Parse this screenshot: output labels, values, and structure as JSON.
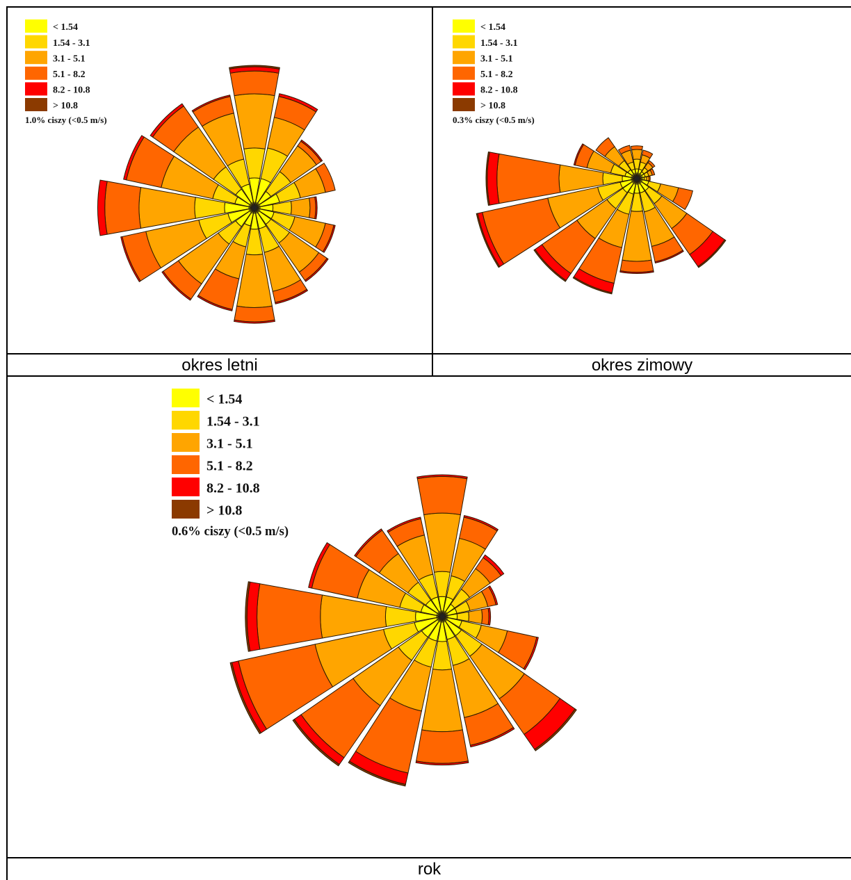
{
  "colors": [
    "#ffff00",
    "#ffd700",
    "#ffa500",
    "#ff6600",
    "#ff0000",
    "#8b3a00"
  ],
  "legend_labels": [
    "< 1.54",
    "1.54 - 3.1",
    "3.1 - 5.1",
    "5.1 - 8.2",
    "8.2 - 10.8",
    "> 10.8"
  ],
  "captions": {
    "summer": "okres letni",
    "winter": "okres zimowy",
    "year": "rok"
  },
  "calm": {
    "summer": "1.0% ciszy (<0.5 m/s)",
    "winter": "0.3% ciszy (<0.5 m/s)",
    "year": "0.6% ciszy (<0.5 m/s)"
  },
  "chart_data": [
    {
      "type": "wind-rose",
      "title": "okres letni",
      "directions_deg": [
        0,
        22.5,
        45,
        67.5,
        90,
        112.5,
        135,
        157.5,
        180,
        202.5,
        225,
        247.5,
        270,
        292.5,
        315,
        337.5
      ],
      "speed_bins": [
        "< 1.54",
        "1.54 - 3.1",
        "3.1 - 5.1",
        "5.1 - 8.2",
        "8.2 - 10.8",
        "> 10.8"
      ],
      "cumulative_radius_relative": [
        [
          0.21,
          0.42,
          0.8,
          0.96,
          0.99,
          1.0
        ],
        [
          0.21,
          0.43,
          0.65,
          0.8,
          0.82,
          0.82
        ],
        [
          0.14,
          0.31,
          0.53,
          0.57,
          0.58,
          0.58
        ],
        [
          0.18,
          0.33,
          0.51,
          0.58,
          0.58,
          0.58
        ],
        [
          0.13,
          0.26,
          0.39,
          0.43,
          0.44,
          0.44
        ],
        [
          0.14,
          0.29,
          0.51,
          0.57,
          0.58,
          0.58
        ],
        [
          0.14,
          0.3,
          0.55,
          0.62,
          0.63,
          0.63
        ],
        [
          0.15,
          0.32,
          0.6,
          0.68,
          0.69,
          0.69
        ],
        [
          0.15,
          0.33,
          0.7,
          0.8,
          0.81,
          0.81
        ],
        [
          0.13,
          0.28,
          0.51,
          0.73,
          0.74,
          0.74
        ],
        [
          0.16,
          0.31,
          0.65,
          0.78,
          0.79,
          0.79
        ],
        [
          0.19,
          0.4,
          0.78,
          0.95,
          0.96,
          0.96
        ],
        [
          0.21,
          0.42,
          0.81,
          1.05,
          1.1,
          1.1
        ],
        [
          0.14,
          0.3,
          0.67,
          0.92,
          0.94,
          0.94
        ],
        [
          0.16,
          0.35,
          0.69,
          0.87,
          0.89,
          0.89
        ],
        [
          0.17,
          0.35,
          0.68,
          0.8,
          0.81,
          0.81
        ]
      ]
    },
    {
      "type": "wind-rose",
      "title": "okres zimowy",
      "directions_deg": [
        0,
        22.5,
        45,
        67.5,
        90,
        112.5,
        135,
        157.5,
        180,
        202.5,
        225,
        247.5,
        270,
        292.5,
        315,
        337.5
      ],
      "speed_bins": [
        "< 1.54",
        "1.54 - 3.1",
        "3.1 - 5.1",
        "5.1 - 8.2",
        "8.2 - 10.8",
        "> 10.8"
      ],
      "cumulative_radius_relative": [
        [
          0.08,
          0.16,
          0.24,
          0.27,
          0.27,
          0.27
        ],
        [
          0.08,
          0.14,
          0.2,
          0.24,
          0.24,
          0.24
        ],
        [
          0.07,
          0.11,
          0.16,
          0.18,
          0.18,
          0.18
        ],
        [
          0.07,
          0.1,
          0.13,
          0.15,
          0.15,
          0.15
        ],
        [
          0.06,
          0.08,
          0.1,
          0.11,
          0.11,
          0.11
        ],
        [
          0.1,
          0.2,
          0.35,
          0.47,
          0.47,
          0.47
        ],
        [
          0.12,
          0.25,
          0.5,
          0.76,
          0.88,
          0.89
        ],
        [
          0.12,
          0.28,
          0.57,
          0.7,
          0.71,
          0.71
        ],
        [
          0.12,
          0.27,
          0.68,
          0.77,
          0.78,
          0.78
        ],
        [
          0.13,
          0.3,
          0.58,
          0.88,
          0.96,
          0.97
        ],
        [
          0.14,
          0.3,
          0.6,
          0.95,
          1.02,
          1.03
        ],
        [
          0.14,
          0.33,
          0.75,
          1.3,
          1.34,
          1.35
        ],
        [
          0.12,
          0.28,
          0.64,
          1.15,
          1.23,
          1.24
        ],
        [
          0.1,
          0.22,
          0.42,
          0.52,
          0.53,
          0.53
        ],
        [
          0.09,
          0.18,
          0.32,
          0.41,
          0.41,
          0.41
        ],
        [
          0.08,
          0.14,
          0.24,
          0.28,
          0.28,
          0.28
        ]
      ]
    },
    {
      "type": "wind-rose",
      "title": "rok",
      "directions_deg": [
        0,
        22.5,
        45,
        67.5,
        90,
        112.5,
        135,
        157.5,
        180,
        202.5,
        225,
        247.5,
        270,
        292.5,
        315,
        337.5
      ],
      "speed_bins": [
        "< 1.54",
        "1.54 - 3.1",
        "3.1 - 5.1",
        "5.1 - 8.2",
        "8.2 - 10.8",
        "> 10.8"
      ],
      "cumulative_radius_relative": [
        [
          0.12,
          0.27,
          0.62,
          0.84,
          0.85,
          0.85
        ],
        [
          0.12,
          0.25,
          0.48,
          0.61,
          0.62,
          0.62
        ],
        [
          0.09,
          0.2,
          0.35,
          0.43,
          0.45,
          0.45
        ],
        [
          0.09,
          0.17,
          0.28,
          0.33,
          0.34,
          0.34
        ],
        [
          0.09,
          0.16,
          0.24,
          0.28,
          0.29,
          0.29
        ],
        [
          0.12,
          0.24,
          0.4,
          0.58,
          0.59,
          0.59
        ],
        [
          0.14,
          0.29,
          0.6,
          0.86,
          0.97,
          0.98
        ],
        [
          0.14,
          0.3,
          0.62,
          0.79,
          0.8,
          0.8
        ],
        [
          0.15,
          0.32,
          0.69,
          0.88,
          0.89,
          0.89
        ],
        [
          0.15,
          0.31,
          0.58,
          0.96,
          1.03,
          1.04
        ],
        [
          0.15,
          0.32,
          0.65,
          1.03,
          1.08,
          1.09
        ],
        [
          0.17,
          0.36,
          0.78,
          1.25,
          1.29,
          1.3
        ],
        [
          0.16,
          0.34,
          0.73,
          1.11,
          1.17,
          1.18
        ],
        [
          0.13,
          0.26,
          0.52,
          0.8,
          0.82,
          0.82
        ],
        [
          0.12,
          0.25,
          0.46,
          0.63,
          0.64,
          0.64
        ],
        [
          0.12,
          0.26,
          0.5,
          0.6,
          0.61,
          0.61
        ]
      ]
    }
  ]
}
